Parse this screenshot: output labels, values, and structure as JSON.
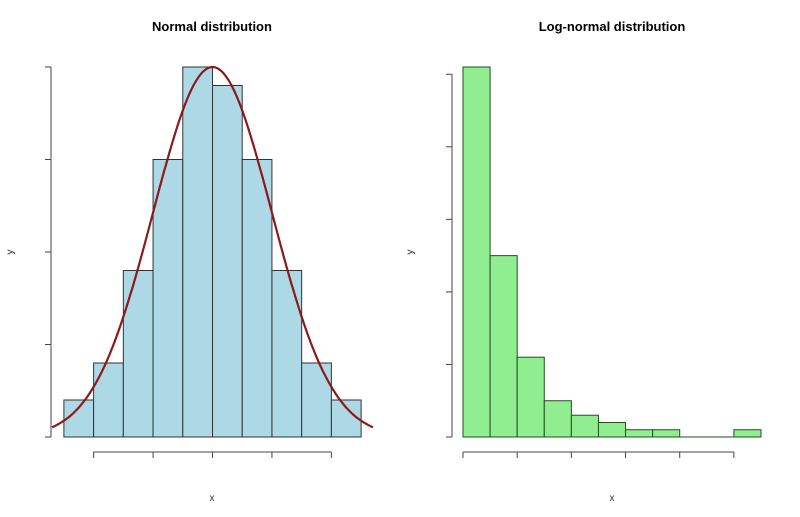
{
  "chart_data": [
    {
      "type": "bar",
      "title": "Normal distribution",
      "xlabel": "x",
      "ylabel": "y",
      "bin_edges": [
        -2.5,
        -2,
        -1.5,
        -1,
        -0.5,
        0,
        0.5,
        1,
        1.5,
        2,
        2.5
      ],
      "values": [
        2,
        4,
        9,
        15,
        20,
        19,
        15,
        9,
        4,
        2
      ],
      "xlim": [
        -2.7,
        2.7
      ],
      "ylim": [
        0,
        20
      ],
      "x_ticks": [
        -2,
        -1,
        0,
        1,
        2
      ],
      "y_ticks": [
        0,
        5,
        10,
        15,
        20
      ],
      "tick_labels_visible": false,
      "overlay_curve": {
        "type": "normal-density",
        "mean": 0,
        "sd": 1,
        "peak": 20,
        "color": "#8b1a1a"
      },
      "bar_color": "#add8e6",
      "grid": false
    },
    {
      "type": "bar",
      "title": "Log-normal distribution",
      "xlabel": "x",
      "ylabel": "y",
      "bin_edges": [
        0,
        1,
        2,
        3,
        4,
        5,
        6,
        7,
        8,
        9,
        10,
        11
      ],
      "values": [
        51,
        25,
        11,
        5,
        3,
        2,
        1,
        1,
        0,
        0,
        1
      ],
      "xlim": [
        0,
        11
      ],
      "ylim": [
        0,
        51
      ],
      "x_ticks": [
        0,
        2,
        4,
        6,
        8,
        10
      ],
      "y_ticks": [
        0,
        10,
        20,
        30,
        40,
        50
      ],
      "tick_labels_visible": false,
      "bar_color": "#90ee90",
      "grid": false
    }
  ]
}
